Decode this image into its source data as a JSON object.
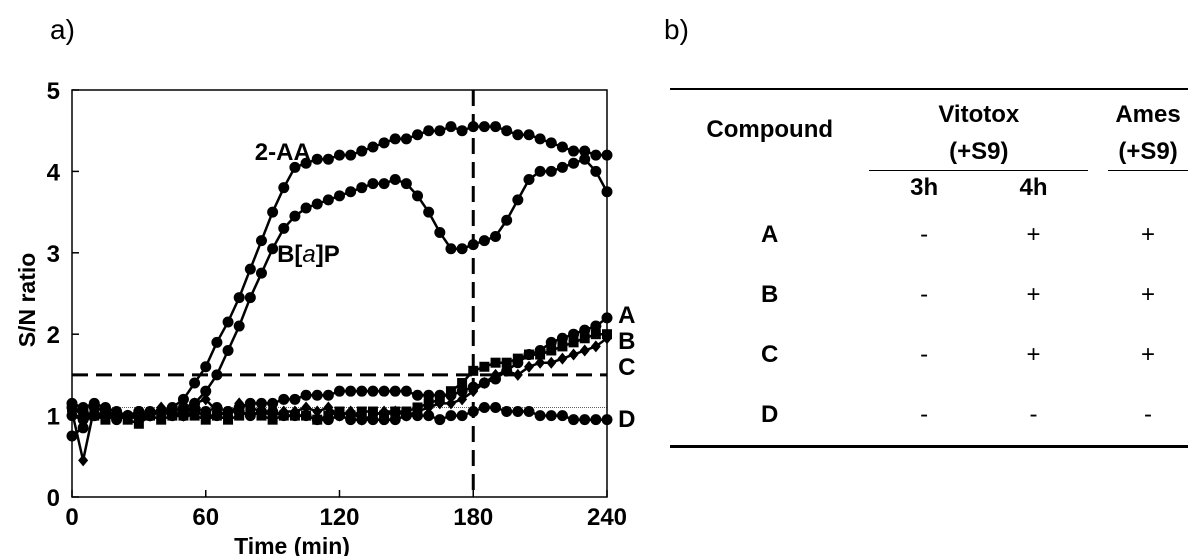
{
  "panels": {
    "a": "a)",
    "b": "b)"
  },
  "chart_data": {
    "type": "line",
    "xlabel": "Time (min)",
    "ylabel": "S/N ratio",
    "xlim": [
      0,
      240
    ],
    "ylim": [
      0,
      5
    ],
    "xticks": [
      0,
      60,
      120,
      180,
      240
    ],
    "yticks": [
      0,
      1,
      2,
      3,
      4,
      5
    ],
    "threshold_y": 1.5,
    "threshold_x": 180,
    "baseline_y": 1.1,
    "series": [
      {
        "name": "2-AA",
        "marker": "circle",
        "x": [
          0,
          5,
          10,
          15,
          20,
          25,
          30,
          35,
          40,
          45,
          50,
          55,
          60,
          65,
          70,
          75,
          80,
          85,
          90,
          95,
          100,
          105,
          110,
          115,
          120,
          125,
          130,
          135,
          140,
          145,
          150,
          155,
          160,
          165,
          170,
          175,
          180,
          185,
          190,
          195,
          200,
          205,
          210,
          215,
          220,
          225,
          230,
          235,
          240
        ],
        "y": [
          1.0,
          0.95,
          1.0,
          1.05,
          0.95,
          1.0,
          1.0,
          1.05,
          1.05,
          1.1,
          1.2,
          1.4,
          1.6,
          1.9,
          2.15,
          2.45,
          2.8,
          3.15,
          3.5,
          3.8,
          4.05,
          4.1,
          4.15,
          4.15,
          4.2,
          4.2,
          4.25,
          4.3,
          4.35,
          4.4,
          4.4,
          4.45,
          4.5,
          4.5,
          4.55,
          4.5,
          4.55,
          4.55,
          4.55,
          4.5,
          4.45,
          4.45,
          4.4,
          4.35,
          4.3,
          4.25,
          4.25,
          4.2,
          4.2
        ]
      },
      {
        "name": "B[a]P",
        "marker": "circle",
        "x": [
          0,
          5,
          10,
          15,
          20,
          25,
          30,
          35,
          40,
          45,
          50,
          55,
          60,
          65,
          70,
          75,
          80,
          85,
          90,
          95,
          100,
          105,
          110,
          115,
          120,
          125,
          130,
          135,
          140,
          145,
          150,
          155,
          160,
          165,
          170,
          175,
          180,
          185,
          190,
          195,
          200,
          205,
          210,
          215,
          220,
          225,
          230,
          235,
          240
        ],
        "y": [
          1.1,
          1.05,
          1.0,
          1.0,
          1.0,
          1.0,
          1.05,
          1.0,
          1.05,
          1.05,
          1.1,
          1.15,
          1.3,
          1.5,
          1.8,
          2.1,
          2.45,
          2.75,
          3.05,
          3.3,
          3.45,
          3.55,
          3.6,
          3.65,
          3.7,
          3.75,
          3.8,
          3.85,
          3.85,
          3.9,
          3.85,
          3.7,
          3.5,
          3.25,
          3.05,
          3.05,
          3.1,
          3.15,
          3.2,
          3.4,
          3.65,
          3.9,
          4.0,
          4.0,
          4.05,
          4.1,
          4.15,
          4.0,
          3.75
        ]
      },
      {
        "name": "A",
        "marker": "circle",
        "x": [
          0,
          5,
          10,
          15,
          20,
          25,
          30,
          35,
          40,
          45,
          50,
          55,
          60,
          65,
          70,
          75,
          80,
          85,
          90,
          95,
          100,
          105,
          110,
          115,
          120,
          125,
          130,
          135,
          140,
          145,
          150,
          155,
          160,
          165,
          170,
          175,
          180,
          185,
          190,
          195,
          200,
          205,
          210,
          215,
          220,
          225,
          230,
          235,
          240
        ],
        "y": [
          0.75,
          0.85,
          1.1,
          1.05,
          1.0,
          1.0,
          1.05,
          1.0,
          1.05,
          1.0,
          1.05,
          1.1,
          1.05,
          1.1,
          1.05,
          1.1,
          1.15,
          1.15,
          1.15,
          1.2,
          1.2,
          1.25,
          1.25,
          1.25,
          1.3,
          1.3,
          1.3,
          1.3,
          1.3,
          1.3,
          1.3,
          1.25,
          1.25,
          1.25,
          1.25,
          1.3,
          1.35,
          1.4,
          1.45,
          1.55,
          1.65,
          1.75,
          1.8,
          1.9,
          1.95,
          2.0,
          2.05,
          2.1,
          2.2
        ]
      },
      {
        "name": "B",
        "marker": "square",
        "x": [
          0,
          5,
          10,
          15,
          20,
          25,
          30,
          35,
          40,
          45,
          50,
          55,
          60,
          65,
          70,
          75,
          80,
          85,
          90,
          95,
          100,
          105,
          110,
          115,
          120,
          125,
          130,
          135,
          140,
          145,
          150,
          155,
          160,
          165,
          170,
          175,
          180,
          185,
          190,
          195,
          200,
          205,
          210,
          215,
          220,
          225,
          230,
          235,
          240
        ],
        "y": [
          1.1,
          1.0,
          1.0,
          0.95,
          1.0,
          0.95,
          0.9,
          1.0,
          0.95,
          1.0,
          1.0,
          1.0,
          0.95,
          1.0,
          0.95,
          1.0,
          1.05,
          1.0,
          0.95,
          1.0,
          1.0,
          1.0,
          0.95,
          1.0,
          1.05,
          1.0,
          1.05,
          1.05,
          1.0,
          1.05,
          1.05,
          1.1,
          1.15,
          1.2,
          1.3,
          1.4,
          1.55,
          1.6,
          1.65,
          1.65,
          1.7,
          1.75,
          1.75,
          1.8,
          1.85,
          1.9,
          1.95,
          2.0,
          2.0
        ]
      },
      {
        "name": "C",
        "marker": "diamond",
        "x": [
          0,
          5,
          10,
          15,
          20,
          25,
          30,
          35,
          40,
          45,
          50,
          55,
          60,
          65,
          70,
          75,
          80,
          85,
          90,
          95,
          100,
          105,
          110,
          115,
          120,
          125,
          130,
          135,
          140,
          145,
          150,
          155,
          160,
          165,
          170,
          175,
          180,
          185,
          190,
          195,
          200,
          205,
          210,
          215,
          220,
          225,
          230,
          235,
          240
        ],
        "y": [
          1.05,
          0.45,
          1.1,
          1.05,
          1.0,
          1.0,
          0.95,
          1.0,
          1.1,
          1.05,
          1.0,
          1.15,
          1.2,
          1.05,
          1.0,
          1.15,
          1.1,
          1.05,
          1.0,
          1.05,
          1.05,
          1.1,
          1.05,
          1.1,
          1.0,
          1.05,
          0.95,
          1.0,
          1.05,
          1.05,
          1.0,
          1.05,
          1.1,
          1.15,
          1.15,
          1.2,
          1.3,
          1.4,
          1.5,
          1.55,
          1.5,
          1.6,
          1.65,
          1.65,
          1.7,
          1.75,
          1.8,
          1.85,
          1.95
        ]
      },
      {
        "name": "D",
        "marker": "circle",
        "x": [
          0,
          5,
          10,
          15,
          20,
          25,
          30,
          35,
          40,
          45,
          50,
          55,
          60,
          65,
          70,
          75,
          80,
          85,
          90,
          95,
          100,
          105,
          110,
          115,
          120,
          125,
          130,
          135,
          140,
          145,
          150,
          155,
          160,
          165,
          170,
          175,
          180,
          185,
          190,
          195,
          200,
          205,
          210,
          215,
          220,
          225,
          230,
          235,
          240
        ],
        "y": [
          1.15,
          1.1,
          1.15,
          1.1,
          1.05,
          1.0,
          1.0,
          1.0,
          1.05,
          1.0,
          1.0,
          1.05,
          1.0,
          1.0,
          1.05,
          1.05,
          1.0,
          1.05,
          1.05,
          1.0,
          1.0,
          1.0,
          0.95,
          0.95,
          1.0,
          0.95,
          0.95,
          0.95,
          0.95,
          0.95,
          1.0,
          1.0,
          1.0,
          0.95,
          1.0,
          1.0,
          1.05,
          1.1,
          1.1,
          1.05,
          1.05,
          1.05,
          1.0,
          1.0,
          1.0,
          0.95,
          0.95,
          0.95,
          0.95
        ]
      }
    ],
    "labels": [
      {
        "text": "2-AA",
        "x": 82,
        "y": 4.25
      },
      {
        "text": "B[a]P",
        "x": 92,
        "y": 3.0
      },
      {
        "text": "A",
        "x": 245,
        "y": 2.25
      },
      {
        "text": "B",
        "x": 245,
        "y": 1.93
      },
      {
        "text": "C",
        "x": 245,
        "y": 1.61
      },
      {
        "text": "D",
        "x": 245,
        "y": 0.97
      }
    ]
  },
  "table": {
    "headers": {
      "compound": "Compound",
      "vitotox": "Vitotox",
      "vitotox_sub": "(+S9)",
      "ames": "Ames",
      "ames_sub": "(+S9)",
      "h3": "3h",
      "h4": "4h"
    },
    "rows": [
      {
        "compound": "A",
        "h3": "-",
        "h4": "+",
        "ames": "+"
      },
      {
        "compound": "B",
        "h3": "-",
        "h4": "+",
        "ames": "+"
      },
      {
        "compound": "C",
        "h3": "-",
        "h4": "+",
        "ames": "+"
      },
      {
        "compound": "D",
        "h3": "-",
        "h4": "-",
        "ames": "-"
      }
    ]
  }
}
